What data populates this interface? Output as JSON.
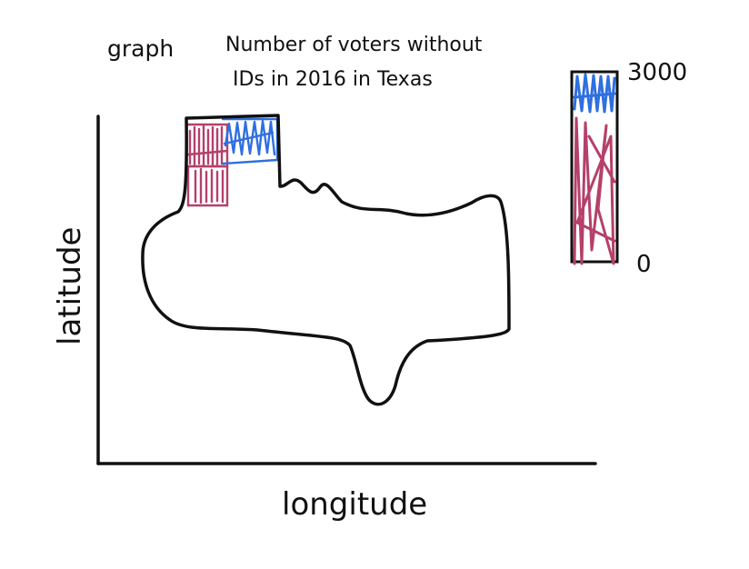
{
  "sketch": {
    "label": "graph",
    "title_line_1": "Number of voters without",
    "title_line_2": "IDs in 2016 in Texas"
  },
  "axes": {
    "x_label": "longitude",
    "y_label": "latitude"
  },
  "legend": {
    "max_label": "3000",
    "min_label": "0"
  },
  "colors": {
    "ink": "#111111",
    "low_color": "#b5406a",
    "high_color": "#2f6fe0"
  }
}
